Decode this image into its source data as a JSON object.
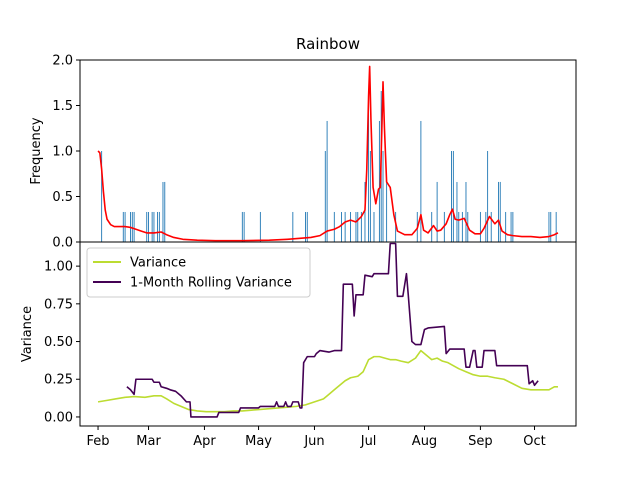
{
  "chart_data": {
    "type": "line",
    "title": "Rainbow",
    "x_tick_labels": [
      "Feb",
      "Mar",
      "Apr",
      "May",
      "Jun",
      "Jul",
      "Aug",
      "Sep",
      "Oct"
    ],
    "x_tick_days": [
      0,
      28,
      59,
      89,
      120,
      150,
      181,
      212,
      242
    ],
    "x_range_days": [
      -10,
      265
    ],
    "top_panel": {
      "ylabel": "Frequency",
      "ylim": [
        0,
        2.0
      ],
      "yticks": [
        0.0,
        0.5,
        1.0,
        1.5,
        2.0
      ],
      "ytick_labels": [
        "0.0",
        "0.5",
        "1.0",
        "1.5",
        "2.0"
      ],
      "events": [
        {
          "day": 2,
          "value": 1.0
        },
        {
          "day": 14,
          "value": 0.33
        },
        {
          "day": 15,
          "value": 0.33
        },
        {
          "day": 18,
          "value": 0.33
        },
        {
          "day": 19,
          "value": 0.33
        },
        {
          "day": 20,
          "value": 0.33
        },
        {
          "day": 27,
          "value": 0.33
        },
        {
          "day": 28,
          "value": 0.33
        },
        {
          "day": 30,
          "value": 0.33
        },
        {
          "day": 31,
          "value": 0.33
        },
        {
          "day": 33,
          "value": 0.33
        },
        {
          "day": 34,
          "value": 0.33
        },
        {
          "day": 36,
          "value": 0.66
        },
        {
          "day": 37,
          "value": 0.66
        },
        {
          "day": 80,
          "value": 0.33
        },
        {
          "day": 81,
          "value": 0.33
        },
        {
          "day": 90,
          "value": 0.33
        },
        {
          "day": 108,
          "value": 0.33
        },
        {
          "day": 115,
          "value": 0.33
        },
        {
          "day": 116,
          "value": 0.33
        },
        {
          "day": 126,
          "value": 1.0
        },
        {
          "day": 127,
          "value": 1.33
        },
        {
          "day": 131,
          "value": 0.33
        },
        {
          "day": 135,
          "value": 0.33
        },
        {
          "day": 137,
          "value": 0.33
        },
        {
          "day": 140,
          "value": 0.33
        },
        {
          "day": 143,
          "value": 0.33
        },
        {
          "day": 144,
          "value": 0.33
        },
        {
          "day": 146,
          "value": 0.33
        },
        {
          "day": 148,
          "value": 0.66
        },
        {
          "day": 150,
          "value": 1.66
        },
        {
          "day": 151,
          "value": 1.0
        },
        {
          "day": 153,
          "value": 0.33
        },
        {
          "day": 156,
          "value": 1.33
        },
        {
          "day": 157,
          "value": 1.66
        },
        {
          "day": 158,
          "value": 1.0
        },
        {
          "day": 160,
          "value": 0.66
        },
        {
          "day": 165,
          "value": 0.33
        },
        {
          "day": 177,
          "value": 0.33
        },
        {
          "day": 179,
          "value": 1.33
        },
        {
          "day": 185,
          "value": 0.33
        },
        {
          "day": 188,
          "value": 0.66
        },
        {
          "day": 192,
          "value": 0.33
        },
        {
          "day": 196,
          "value": 1.0
        },
        {
          "day": 197,
          "value": 1.0
        },
        {
          "day": 199,
          "value": 0.66
        },
        {
          "day": 200,
          "value": 0.33
        },
        {
          "day": 202,
          "value": 0.33
        },
        {
          "day": 204,
          "value": 0.66
        },
        {
          "day": 205,
          "value": 0.33
        },
        {
          "day": 212,
          "value": 0.33
        },
        {
          "day": 215,
          "value": 0.33
        },
        {
          "day": 216,
          "value": 1.0
        },
        {
          "day": 218,
          "value": 0.33
        },
        {
          "day": 222,
          "value": 0.66
        },
        {
          "day": 223,
          "value": 0.66
        },
        {
          "day": 226,
          "value": 0.33
        },
        {
          "day": 229,
          "value": 0.33
        },
        {
          "day": 230,
          "value": 0.33
        },
        {
          "day": 250,
          "value": 0.33
        },
        {
          "day": 251,
          "value": 0.33
        },
        {
          "day": 254,
          "value": 0.33
        }
      ],
      "smoothed": [
        [
          0,
          1.0
        ],
        [
          1,
          0.98
        ],
        [
          2,
          0.8
        ],
        [
          3,
          0.55
        ],
        [
          4,
          0.35
        ],
        [
          5,
          0.25
        ],
        [
          7,
          0.19
        ],
        [
          9,
          0.17
        ],
        [
          12,
          0.17
        ],
        [
          15,
          0.17
        ],
        [
          18,
          0.16
        ],
        [
          21,
          0.14
        ],
        [
          24,
          0.12
        ],
        [
          27,
          0.1
        ],
        [
          31,
          0.1
        ],
        [
          35,
          0.11
        ],
        [
          38,
          0.08
        ],
        [
          42,
          0.05
        ],
        [
          47,
          0.03
        ],
        [
          55,
          0.02
        ],
        [
          65,
          0.015
        ],
        [
          80,
          0.015
        ],
        [
          95,
          0.02
        ],
        [
          105,
          0.03
        ],
        [
          112,
          0.04
        ],
        [
          118,
          0.05
        ],
        [
          123,
          0.07
        ],
        [
          127,
          0.12
        ],
        [
          131,
          0.14
        ],
        [
          134,
          0.17
        ],
        [
          137,
          0.22
        ],
        [
          140,
          0.24
        ],
        [
          143,
          0.22
        ],
        [
          146,
          0.28
        ],
        [
          148,
          0.35
        ],
        [
          149,
          0.8
        ],
        [
          150,
          1.6
        ],
        [
          150.6,
          1.93
        ],
        [
          151.3,
          1.35
        ],
        [
          152.5,
          0.6
        ],
        [
          154,
          0.42
        ],
        [
          155.5,
          0.58
        ],
        [
          156.5,
          0.6
        ],
        [
          157.3,
          1.2
        ],
        [
          158,
          1.76
        ],
        [
          158.8,
          1.25
        ],
        [
          160,
          0.66
        ],
        [
          162,
          0.6
        ],
        [
          164,
          0.3
        ],
        [
          166,
          0.12
        ],
        [
          170,
          0.08
        ],
        [
          174,
          0.08
        ],
        [
          177,
          0.15
        ],
        [
          179,
          0.3
        ],
        [
          180.5,
          0.13
        ],
        [
          183,
          0.1
        ],
        [
          186,
          0.18
        ],
        [
          188,
          0.12
        ],
        [
          190,
          0.13
        ],
        [
          193,
          0.2
        ],
        [
          195,
          0.3
        ],
        [
          196.5,
          0.36
        ],
        [
          198,
          0.25
        ],
        [
          200,
          0.24
        ],
        [
          203,
          0.26
        ],
        [
          206,
          0.13
        ],
        [
          209,
          0.09
        ],
        [
          212,
          0.09
        ],
        [
          214,
          0.15
        ],
        [
          217,
          0.28
        ],
        [
          220,
          0.2
        ],
        [
          222,
          0.24
        ],
        [
          224,
          0.12
        ],
        [
          227,
          0.08
        ],
        [
          230,
          0.07
        ],
        [
          235,
          0.06
        ],
        [
          240,
          0.06
        ],
        [
          245,
          0.05
        ],
        [
          250,
          0.06
        ],
        [
          253,
          0.08
        ],
        [
          255,
          0.1
        ]
      ]
    },
    "bottom_panel": {
      "ylabel": "Variance",
      "ylim": [
        -0.06,
        1.16
      ],
      "yticks": [
        0.0,
        0.25,
        0.5,
        0.75,
        1.0
      ],
      "ytick_labels": [
        "0.00",
        "0.25",
        "0.50",
        "0.75",
        "1.00"
      ],
      "legend_position": "upper-left",
      "series": [
        {
          "name": "Variance",
          "color": "#bcdc31",
          "points": [
            [
              0,
              0.1
            ],
            [
              5,
              0.11
            ],
            [
              10,
              0.12
            ],
            [
              15,
              0.13
            ],
            [
              20,
              0.135
            ],
            [
              26,
              0.13
            ],
            [
              31,
              0.14
            ],
            [
              35,
              0.14
            ],
            [
              38,
              0.12
            ],
            [
              42,
              0.09
            ],
            [
              46,
              0.07
            ],
            [
              50,
              0.05
            ],
            [
              55,
              0.04
            ],
            [
              60,
              0.035
            ],
            [
              65,
              0.035
            ],
            [
              70,
              0.035
            ],
            [
              75,
              0.04
            ],
            [
              80,
              0.04
            ],
            [
              85,
              0.045
            ],
            [
              90,
              0.05
            ],
            [
              95,
              0.055
            ],
            [
              100,
              0.06
            ],
            [
              105,
              0.065
            ],
            [
              110,
              0.07
            ],
            [
              115,
              0.08
            ],
            [
              120,
              0.1
            ],
            [
              125,
              0.12
            ],
            [
              128,
              0.15
            ],
            [
              131,
              0.18
            ],
            [
              134,
              0.21
            ],
            [
              137,
              0.24
            ],
            [
              140,
              0.26
            ],
            [
              144,
              0.27
            ],
            [
              147,
              0.3
            ],
            [
              150,
              0.38
            ],
            [
              153,
              0.4
            ],
            [
              156,
              0.4
            ],
            [
              159,
              0.39
            ],
            [
              162,
              0.38
            ],
            [
              165,
              0.38
            ],
            [
              168,
              0.37
            ],
            [
              172,
              0.36
            ],
            [
              176,
              0.39
            ],
            [
              179,
              0.44
            ],
            [
              182,
              0.41
            ],
            [
              185,
              0.38
            ],
            [
              188,
              0.39
            ],
            [
              191,
              0.37
            ],
            [
              194,
              0.36
            ],
            [
              197,
              0.34
            ],
            [
              200,
              0.32
            ],
            [
              204,
              0.3
            ],
            [
              208,
              0.28
            ],
            [
              212,
              0.27
            ],
            [
              216,
              0.27
            ],
            [
              220,
              0.26
            ],
            [
              225,
              0.25
            ],
            [
              230,
              0.22
            ],
            [
              235,
              0.19
            ],
            [
              240,
              0.18
            ],
            [
              245,
              0.18
            ],
            [
              250,
              0.18
            ],
            [
              253,
              0.2
            ],
            [
              255,
              0.2
            ]
          ]
        },
        {
          "name": "1-Month Rolling Variance",
          "color": "#440154",
          "points": [
            [
              16,
              0.2
            ],
            [
              18,
              0.18
            ],
            [
              20,
              0.15
            ],
            [
              21,
              0.25
            ],
            [
              25,
              0.25
            ],
            [
              30,
              0.25
            ],
            [
              31,
              0.23
            ],
            [
              34,
              0.23
            ],
            [
              35,
              0.2
            ],
            [
              38,
              0.19
            ],
            [
              40,
              0.18
            ],
            [
              43,
              0.17
            ],
            [
              46,
              0.14
            ],
            [
              49,
              0.1
            ],
            [
              51,
              0.1
            ],
            [
              51.5,
              0.0
            ],
            [
              66,
              0.0
            ],
            [
              67,
              0.03
            ],
            [
              78,
              0.03
            ],
            [
              79,
              0.06
            ],
            [
              89,
              0.06
            ],
            [
              90,
              0.07
            ],
            [
              98,
              0.07
            ],
            [
              99,
              0.1
            ],
            [
              100,
              0.07
            ],
            [
              103,
              0.07
            ],
            [
              104,
              0.1
            ],
            [
              105,
              0.07
            ],
            [
              107,
              0.07
            ],
            [
              108,
              0.1
            ],
            [
              111,
              0.1
            ],
            [
              112,
              0.06
            ],
            [
              113,
              0.06
            ],
            [
              114,
              0.36
            ],
            [
              116,
              0.4
            ],
            [
              120,
              0.4
            ],
            [
              121,
              0.42
            ],
            [
              123,
              0.44
            ],
            [
              128,
              0.43
            ],
            [
              131,
              0.44
            ],
            [
              135,
              0.44
            ],
            [
              136,
              0.88
            ],
            [
              141,
              0.88
            ],
            [
              142,
              0.67
            ],
            [
              143,
              0.81
            ],
            [
              147,
              0.81
            ],
            [
              148,
              0.94
            ],
            [
              152,
              0.93
            ],
            [
              153,
              0.95
            ],
            [
              161,
              0.95
            ],
            [
              162,
              1.15
            ],
            [
              165,
              1.15
            ],
            [
              166,
              0.8
            ],
            [
              169,
              0.8
            ],
            [
              171,
              0.95
            ],
            [
              172,
              0.81
            ],
            [
              174,
              0.5
            ],
            [
              176,
              0.48
            ],
            [
              179,
              0.48
            ],
            [
              181,
              0.58
            ],
            [
              183,
              0.59
            ],
            [
              192,
              0.6
            ],
            [
              193,
              0.42
            ],
            [
              195,
              0.45
            ],
            [
              203,
              0.45
            ],
            [
              204,
              0.33
            ],
            [
              206,
              0.33
            ],
            [
              208,
              0.44
            ],
            [
              209,
              0.44
            ],
            [
              210,
              0.33
            ],
            [
              213,
              0.33
            ],
            [
              214,
              0.44
            ],
            [
              220,
              0.44
            ],
            [
              221,
              0.34
            ],
            [
              227,
              0.34
            ],
            [
              238,
              0.34
            ],
            [
              239,
              0.22
            ],
            [
              241,
              0.24
            ],
            [
              242,
              0.21
            ],
            [
              244,
              0.24
            ]
          ]
        }
      ]
    }
  }
}
